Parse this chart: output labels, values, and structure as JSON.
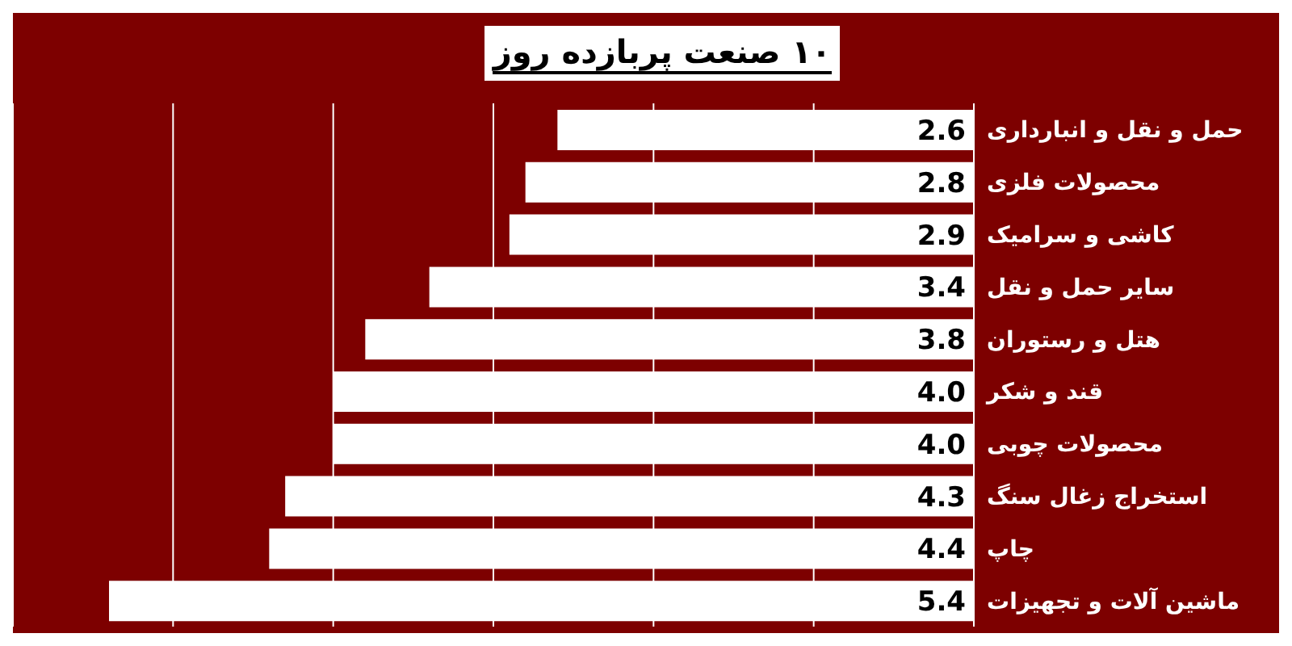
{
  "chart_data": {
    "type": "bar",
    "title": "۱۰ صنعت پربازده روز",
    "orientation": "horizontal",
    "categories": [
      "حمل و نقل و انبارداری",
      "محصولات فلزی",
      "کاشی و سرامیک",
      "سایر حمل و نقل",
      "هتل و رستوران",
      "قند و شکر",
      "محصولات چوبی",
      "استخراج زغال سنگ",
      "چاپ",
      "ماشین آلات و تجهیزات"
    ],
    "values": [
      2.6,
      2.8,
      2.9,
      3.4,
      3.8,
      4.0,
      4.0,
      4.3,
      4.4,
      5.4
    ],
    "value_labels": [
      "2.6",
      "2.8",
      "2.9",
      "3.4",
      "3.8",
      "4.0",
      "4.0",
      "4.3",
      "4.4",
      "5.4"
    ],
    "color": "#ffffff",
    "xlim": [
      6,
      0
    ],
    "grid": "x",
    "tick_labels": false
  }
}
